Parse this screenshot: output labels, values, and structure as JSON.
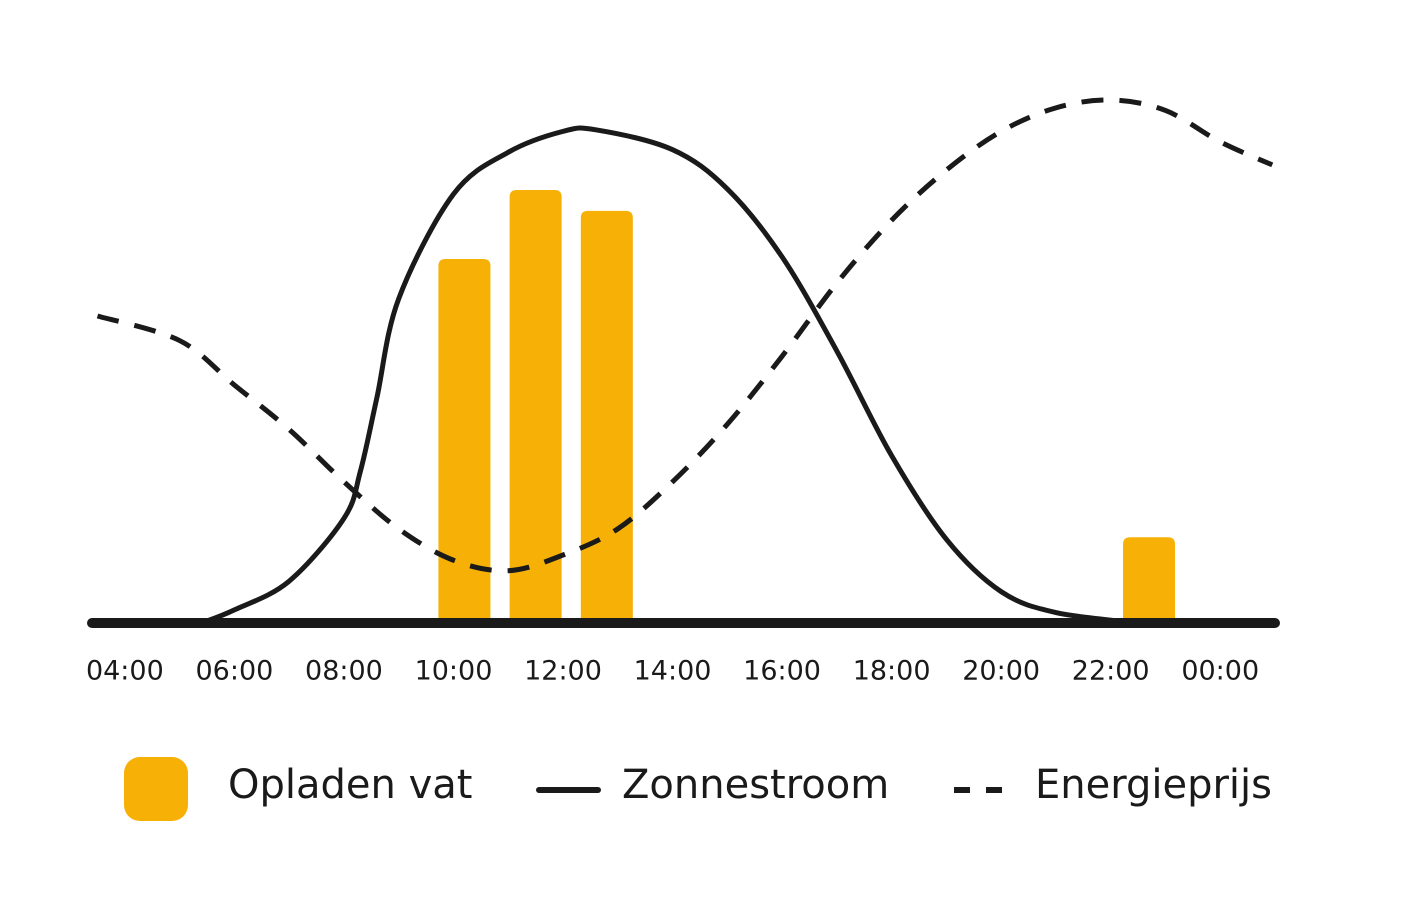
{
  "chart_data": {
    "type": "combo",
    "xlim": [
      3.4,
      25
    ],
    "ylim": [
      0,
      100
    ],
    "xticks": [
      {
        "value": 4,
        "label": "04:00"
      },
      {
        "value": 6,
        "label": "06:00"
      },
      {
        "value": 8,
        "label": "08:00"
      },
      {
        "value": 10,
        "label": "10:00"
      },
      {
        "value": 12,
        "label": "12:00"
      },
      {
        "value": 14,
        "label": "14:00"
      },
      {
        "value": 16,
        "label": "16:00"
      },
      {
        "value": 18,
        "label": "18:00"
      },
      {
        "value": 20,
        "label": "20:00"
      },
      {
        "value": 22,
        "label": "22:00"
      },
      {
        "value": 24,
        "label": "00:00"
      }
    ],
    "series": [
      {
        "name": "Opladen vat",
        "type": "bar",
        "color": "#f7b006",
        "x": [
          10.2,
          11.5,
          12.8,
          22.7
        ],
        "values": [
          69.6,
          82.8,
          78.8,
          16.4
        ]
      },
      {
        "name": "Zonnestroom",
        "type": "line",
        "dashed": false,
        "color": "#1a1a1a",
        "x": [
          5.4,
          6,
          7,
          8,
          8.3,
          8.6,
          9,
          10,
          11,
          12,
          12.6,
          14,
          15,
          16,
          17,
          18,
          19,
          20,
          21,
          22.5
        ],
        "values": [
          0,
          2.5,
          8,
          20,
          29,
          43,
          62,
          82,
          90,
          94,
          94.3,
          90.5,
          83,
          70,
          52,
          32,
          16,
          6,
          2,
          0
        ]
      },
      {
        "name": "Energieprijs",
        "type": "line",
        "dashed": true,
        "color": "#1a1a1a",
        "x": [
          3.5,
          5,
          6,
          7,
          8,
          9,
          10,
          11,
          12,
          13,
          14,
          15,
          16,
          17,
          18,
          19,
          20,
          21,
          22,
          23,
          24,
          24.95
        ],
        "values": [
          58.7,
          54,
          45.5,
          37,
          27,
          18,
          12,
          10,
          13,
          18,
          27,
          38,
          51,
          65,
          77,
          86.6,
          94,
          98.5,
          100,
          98,
          92,
          87.6
        ]
      }
    ]
  }
}
